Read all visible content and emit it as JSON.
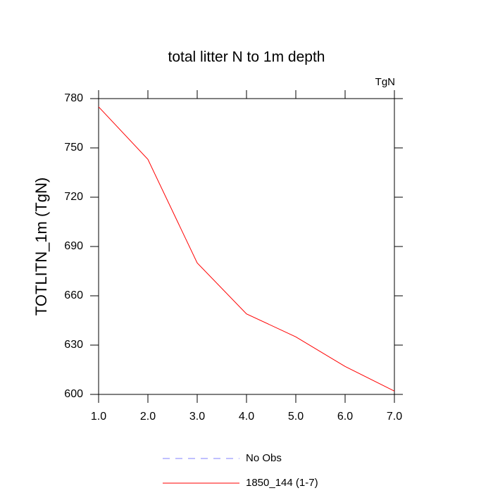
{
  "chart_data": {
    "type": "line",
    "title": "total litter N to 1m depth",
    "subtitle": "TgN",
    "y_label": "TOTLITN_1m  (TgN)",
    "x": [
      1,
      2,
      3,
      4,
      5,
      6,
      7
    ],
    "series": [
      {
        "name": "1850_144 (1-7)",
        "color": "#ff0000",
        "values": [
          775,
          743,
          680,
          649,
          635,
          617,
          602
        ]
      }
    ],
    "extra_legend": [
      {
        "name": "No Obs",
        "color": "#8080ff",
        "style": "dashed"
      }
    ],
    "xlim": [
      1,
      7
    ],
    "xticks": [
      {
        "value": 1,
        "label": "1.0"
      },
      {
        "value": 2,
        "label": "2.0"
      },
      {
        "value": 3,
        "label": "3.0"
      },
      {
        "value": 4,
        "label": "4.0"
      },
      {
        "value": 5,
        "label": "5.0"
      },
      {
        "value": 6,
        "label": "6.0"
      },
      {
        "value": 7,
        "label": "7.0"
      }
    ],
    "ylim": [
      600,
      780
    ],
    "yticks": [
      600,
      630,
      660,
      690,
      720,
      750,
      780
    ]
  }
}
